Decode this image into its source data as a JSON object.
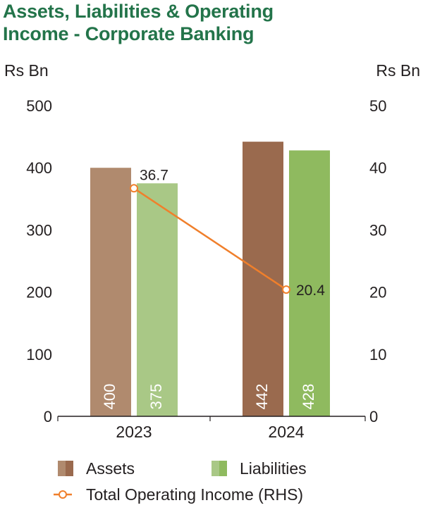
{
  "chart_data": {
    "type": "bar",
    "title_line1": "Assets, Liabilities & Operating",
    "title_line2": "Income - Corporate Banking",
    "ylabel_left": "Rs Bn",
    "ylabel_right": "Rs Bn",
    "categories": [
      "2023",
      "2024"
    ],
    "ylim_left": [
      0,
      500
    ],
    "ylim_right": [
      0,
      50
    ],
    "yticks_left": [
      "0",
      "100",
      "200",
      "300",
      "400",
      "500"
    ],
    "yticks_right": [
      "0",
      "10",
      "20",
      "30",
      "40",
      "50"
    ],
    "series": [
      {
        "name": "Assets",
        "axis": "left",
        "values": [
          400,
          442
        ],
        "labels": [
          "400",
          "442"
        ],
        "colors": [
          "#b08a6e",
          "#9a6a4e"
        ]
      },
      {
        "name": "Liabilities",
        "axis": "right-bars-left-scale",
        "values": [
          375,
          428
        ],
        "labels": [
          "375",
          "428"
        ],
        "colors": [
          "#a9c886",
          "#8fba5f"
        ]
      },
      {
        "name": "Total Operating Income (RHS)",
        "type": "line",
        "axis": "right",
        "values": [
          36.7,
          20.4
        ],
        "labels": [
          "36.7",
          "20.4"
        ],
        "color": "#f07f2b"
      }
    ],
    "grid": false,
    "legend_position": "bottom"
  }
}
